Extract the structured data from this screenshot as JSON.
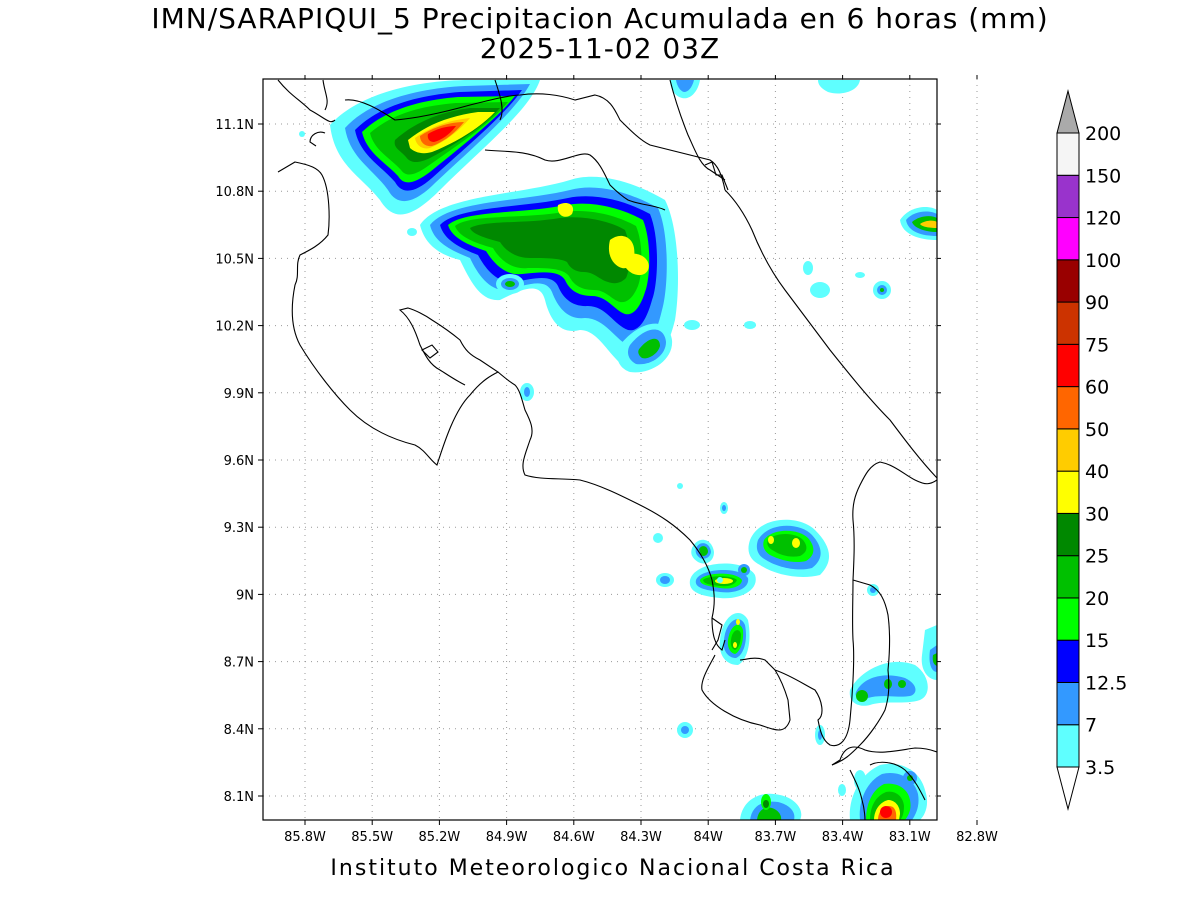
{
  "title": "IMN/SARAPIQUI_5 Precipitacion Acumulada en 6 horas (mm)",
  "subtitle": "2025-11-02 03Z",
  "footer": "Instituto Meteorologico Nacional Costa Rica",
  "lon_ticks": [
    "85.8W",
    "85.5W",
    "85.2W",
    "84.9W",
    "84.6W",
    "84.3W",
    "84W",
    "83.7W",
    "83.4W",
    "83.1W",
    "82.8W"
  ],
  "lat_ticks": [
    "11.1N",
    "10.8N",
    "10.5N",
    "10.2N",
    "9.9N",
    "9.6N",
    "9.3N",
    "9N",
    "8.7N",
    "8.4N",
    "8.1N"
  ],
  "colorbar": {
    "labels": [
      "3.5",
      "7",
      "12.5",
      "15",
      "20",
      "25",
      "30",
      "40",
      "50",
      "60",
      "75",
      "90",
      "100",
      "120",
      "150",
      "200"
    ],
    "colors": [
      "#ffffff",
      "#5fffff",
      "#3399ff",
      "#0000ff",
      "#00ff00",
      "#00c000",
      "#008800",
      "#ffff00",
      "#ffcc00",
      "#ff6600",
      "#ff0000",
      "#cc3300",
      "#990000",
      "#ff00ff",
      "#9933cc",
      "#f5f5f5",
      "#aaaaaa"
    ]
  }
}
